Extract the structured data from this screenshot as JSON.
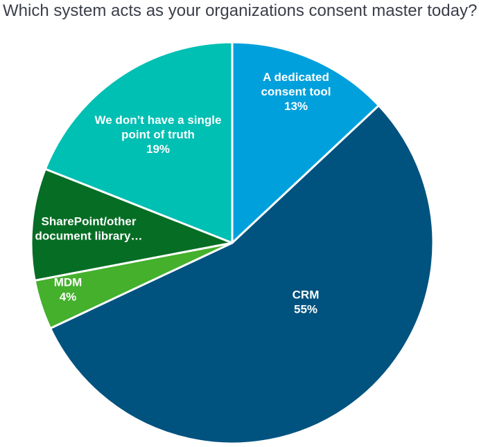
{
  "chart_data": {
    "type": "pie",
    "title": "Which system acts as your organizations consent master today?",
    "slices": [
      {
        "label_lines": [
          "A dedicated",
          "consent tool"
        ],
        "value_label": "13%",
        "value": 13,
        "color": "#00a0dc"
      },
      {
        "label_lines": [
          "CRM"
        ],
        "value_label": "55%",
        "value": 55,
        "color": "#00527f"
      },
      {
        "label_lines": [
          "MDM"
        ],
        "value_label": "4%",
        "value": 4,
        "color": "#44b02c"
      },
      {
        "label_lines": [
          "SharePoint/other",
          "document library…"
        ],
        "value_label": "",
        "value": 9,
        "color": "#066d24"
      },
      {
        "label_lines": [
          "We don’t have a single",
          "point of truth"
        ],
        "value_label": "19%",
        "value": 19,
        "color": "#00bfb3"
      }
    ],
    "start_angle_deg": 0,
    "direction": "clockwise"
  }
}
